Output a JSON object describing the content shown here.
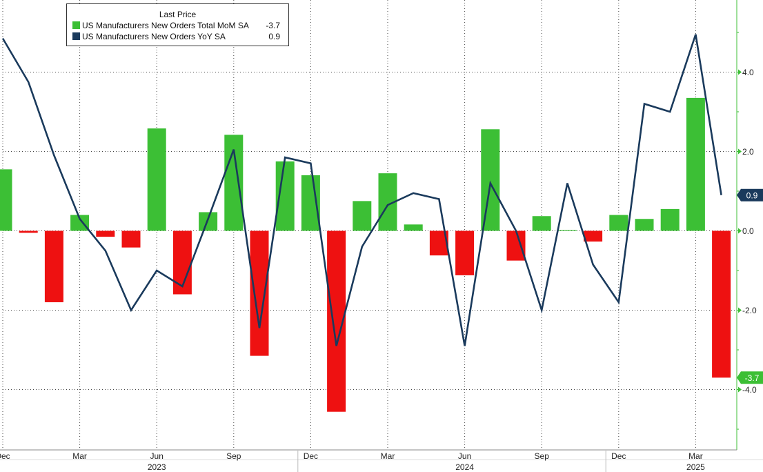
{
  "chart_data": {
    "type": "bar",
    "legend": {
      "title": "Last Price",
      "entries": [
        {
          "name": "US Manufacturers New Orders Total MoM SA",
          "value": "-3.7",
          "color": "#3cbf35"
        },
        {
          "name": "US Manufacturers New Orders YoY SA",
          "value": "0.9",
          "color": "#1a3a5c"
        }
      ]
    },
    "x": [
      "2022-12",
      "2023-01",
      "2023-02",
      "2023-03",
      "2023-04",
      "2023-05",
      "2023-06",
      "2023-07",
      "2023-08",
      "2023-09",
      "2023-10",
      "2023-11",
      "2023-12",
      "2024-01",
      "2024-02",
      "2024-03",
      "2024-04",
      "2024-05",
      "2024-06",
      "2024-07",
      "2024-08",
      "2024-09",
      "2024-10",
      "2024-11",
      "2024-12",
      "2025-01",
      "2025-02",
      "2025-03",
      "2025-04"
    ],
    "series": [
      {
        "name": "US Manufacturers New Orders Total MoM SA",
        "type": "bar",
        "values": [
          1.55,
          -0.05,
          -1.8,
          0.4,
          -0.15,
          -0.42,
          2.58,
          -1.6,
          0.47,
          2.42,
          -3.15,
          1.75,
          1.4,
          -4.56,
          0.75,
          1.45,
          0.16,
          -0.62,
          -1.12,
          2.56,
          -0.75,
          0.37,
          0.02,
          -0.27,
          0.4,
          0.3,
          0.55,
          3.35,
          -3.7
        ],
        "positive_color": "#3cbf35",
        "negative_color": "#ee1111"
      },
      {
        "name": "US Manufacturers New Orders YoY SA",
        "type": "line",
        "values": [
          4.85,
          3.75,
          1.9,
          0.3,
          -0.5,
          -2.0,
          -1.0,
          -1.4,
          0.3,
          2.05,
          -2.45,
          1.85,
          1.7,
          -2.9,
          -0.4,
          0.65,
          0.95,
          0.8,
          -2.9,
          1.2,
          0.0,
          -2.0,
          1.2,
          -0.85,
          -1.8,
          3.2,
          3.0,
          4.95,
          0.9
        ],
        "color": "#1a3a5c"
      }
    ],
    "y_ticks": [
      "4.0",
      "2.0",
      "0.0",
      "-2.0",
      "-4.0"
    ],
    "y_tick_values": [
      4,
      2,
      0,
      -2,
      -4
    ],
    "ylim": [
      -5.0,
      5.8
    ],
    "x_tick_labels": [
      "Dec",
      "Mar",
      "Jun",
      "Sep",
      "Dec",
      "Mar",
      "Jun",
      "Sep",
      "Dec",
      "Mar"
    ],
    "x_tick_positions": [
      0,
      3,
      6,
      9,
      12,
      15,
      18,
      21,
      24,
      27
    ],
    "year_labels": [
      "2023",
      "2024",
      "2025"
    ],
    "year_label_positions": [
      6,
      18,
      27
    ],
    "last_value_labels": {
      "bar": "-3.7",
      "line": "0.9"
    },
    "grid": true
  }
}
